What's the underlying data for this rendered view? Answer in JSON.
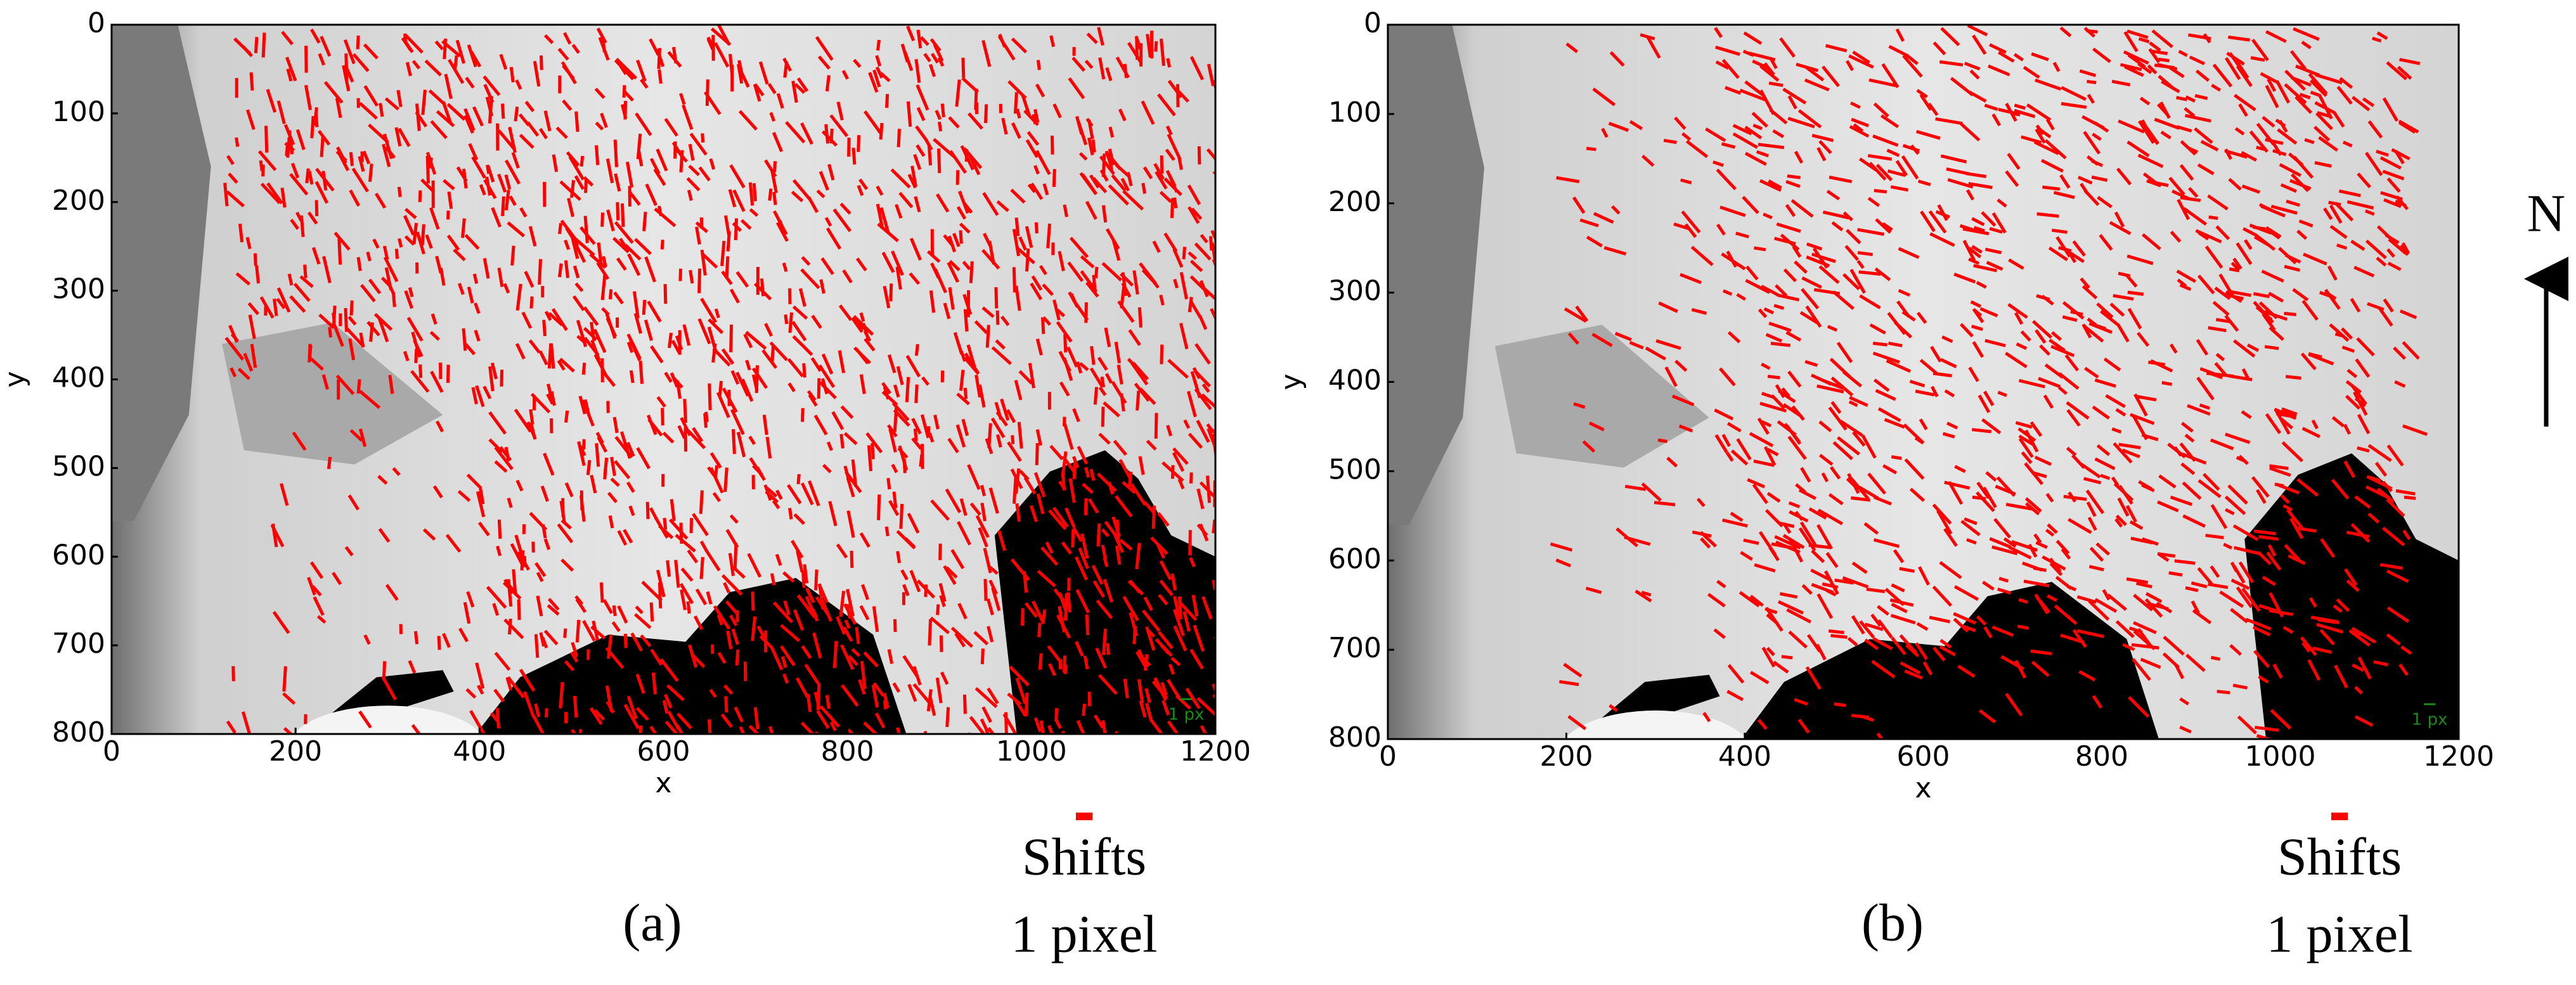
{
  "panels": [
    {
      "label": "(a)",
      "x_label": "x",
      "y_label": "y",
      "xlim": [
        0,
        1200
      ],
      "ylim": [
        800,
        0
      ],
      "xticks": [
        0,
        200,
        400,
        600,
        800,
        1000,
        1200
      ],
      "yticks": [
        0,
        100,
        200,
        300,
        400,
        500,
        600,
        700,
        800
      ],
      "scale_label": "1 px",
      "legend_lines": [
        "Shifts",
        "1 pixel"
      ]
    },
    {
      "label": "(b)",
      "x_label": "x",
      "y_label": "y",
      "xlim": [
        0,
        1200
      ],
      "ylim": [
        800,
        0
      ],
      "xticks": [
        0,
        200,
        400,
        600,
        800,
        1000,
        1200
      ],
      "yticks": [
        0,
        100,
        200,
        300,
        400,
        500,
        600,
        700,
        800
      ],
      "scale_label": "1 px",
      "legend_lines": [
        "Shifts",
        "1 pixel"
      ]
    }
  ],
  "north": "N"
}
